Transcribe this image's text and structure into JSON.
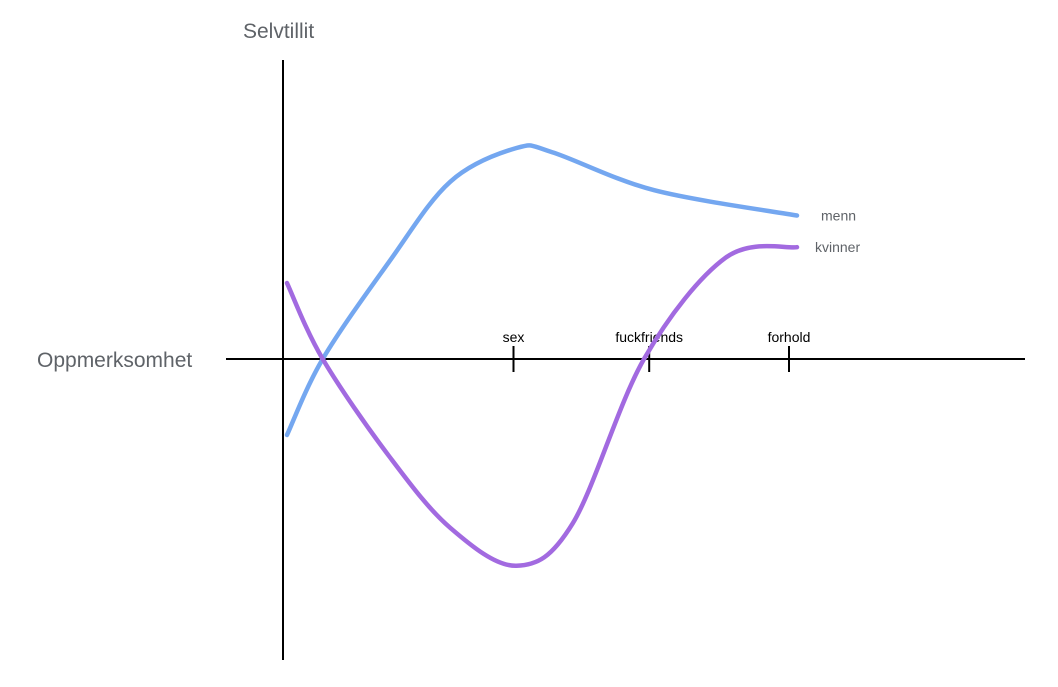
{
  "chart_data": {
    "type": "line",
    "title": "",
    "xlabel": "Oppmerksomhet",
    "ylabel": "Selvtillit",
    "x_ticks": [
      {
        "label": "sex",
        "x": 0.45
      },
      {
        "label": "fuckfriends",
        "x": 0.72
      },
      {
        "label": "forhold",
        "x": 1.0
      }
    ],
    "xlim": [
      0,
      1.0
    ],
    "ylim": [
      -1,
      1
    ],
    "grid": false,
    "series": [
      {
        "name": "menn",
        "color": "#74a7f0",
        "points": [
          [
            0.0,
            -0.36
          ],
          [
            0.07,
            0.0
          ],
          [
            0.2,
            0.46
          ],
          [
            0.32,
            0.84
          ],
          [
            0.45,
            1.0
          ],
          [
            0.52,
            0.98
          ],
          [
            0.72,
            0.8
          ],
          [
            1.0,
            0.68
          ]
        ]
      },
      {
        "name": "kvinner",
        "color": "#a26ae0",
        "points": [
          [
            0.0,
            0.36
          ],
          [
            0.07,
            0.0
          ],
          [
            0.2,
            -0.46
          ],
          [
            0.32,
            -0.8
          ],
          [
            0.45,
            -0.98
          ],
          [
            0.56,
            -0.78
          ],
          [
            0.7,
            0.0
          ],
          [
            0.86,
            0.48
          ],
          [
            1.0,
            0.53
          ]
        ]
      }
    ]
  }
}
